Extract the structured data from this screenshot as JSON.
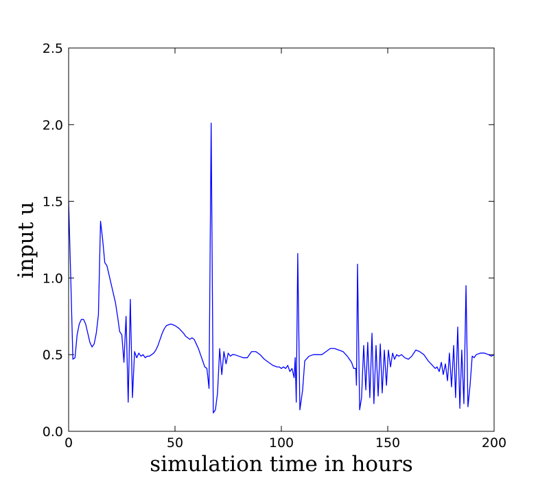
{
  "chart_data": {
    "type": "line",
    "x_label": "simulation time in hours",
    "y_label": "input u",
    "x": [
      0,
      1,
      2,
      3,
      4,
      5,
      6,
      7,
      8,
      9,
      10,
      11,
      12,
      13,
      14,
      15,
      16,
      17,
      18,
      19,
      20,
      21,
      22,
      23,
      24,
      25,
      26,
      27,
      28,
      29,
      30,
      31,
      32,
      33,
      34,
      35,
      36,
      37,
      38,
      39,
      40,
      41,
      42,
      43,
      44,
      45,
      46,
      48,
      50,
      52,
      54,
      55,
      56,
      57,
      58,
      59,
      60,
      61,
      62,
      63,
      64,
      65,
      66,
      67,
      68,
      69,
      70,
      71,
      72,
      73,
      74,
      75,
      76,
      77,
      78,
      80,
      82,
      84,
      86,
      88,
      90,
      92,
      94,
      96,
      98,
      99,
      100,
      101,
      102,
      103,
      104,
      105,
      106,
      106.5,
      107,
      107.7,
      108.7,
      110,
      111,
      113,
      115,
      117,
      119,
      121,
      123,
      125,
      127,
      129,
      131,
      133,
      134,
      135,
      135.3,
      135.8,
      136.8,
      137.7,
      138.7,
      139.7,
      140.6,
      141.6,
      142.6,
      143.5,
      144.5,
      145.5,
      146.5,
      147.4,
      148.4,
      149.4,
      150.3,
      151.3,
      152.3,
      153.2,
      154.2,
      155.2,
      156.5,
      158,
      159.7,
      161.3,
      163.2,
      165,
      167,
      169,
      171,
      172.3,
      173.2,
      174.2,
      175.2,
      176.1,
      177.1,
      178.1,
      179,
      180,
      181,
      181.9,
      182.9,
      183.9,
      184.8,
      185.8,
      186.8,
      187.7,
      188.7,
      189.7,
      190.6,
      191.6,
      193.5,
      195.5,
      197.4,
      198.7,
      200
    ],
    "values": [
      1.5,
      1.0,
      0.47,
      0.48,
      0.63,
      0.7,
      0.73,
      0.73,
      0.7,
      0.64,
      0.58,
      0.55,
      0.57,
      0.64,
      0.76,
      1.37,
      1.25,
      1.1,
      1.08,
      1.02,
      0.96,
      0.9,
      0.84,
      0.75,
      0.65,
      0.63,
      0.45,
      0.75,
      0.19,
      0.86,
      0.22,
      0.52,
      0.48,
      0.51,
      0.49,
      0.5,
      0.48,
      0.49,
      0.49,
      0.5,
      0.51,
      0.53,
      0.56,
      0.6,
      0.64,
      0.67,
      0.69,
      0.7,
      0.69,
      0.67,
      0.64,
      0.62,
      0.61,
      0.6,
      0.61,
      0.6,
      0.57,
      0.54,
      0.5,
      0.46,
      0.42,
      0.41,
      0.28,
      2.01,
      0.12,
      0.14,
      0.25,
      0.54,
      0.37,
      0.52,
      0.44,
      0.51,
      0.49,
      0.5,
      0.5,
      0.49,
      0.48,
      0.48,
      0.52,
      0.52,
      0.5,
      0.47,
      0.45,
      0.43,
      0.42,
      0.42,
      0.41,
      0.42,
      0.41,
      0.43,
      0.39,
      0.41,
      0.35,
      0.48,
      0.19,
      1.16,
      0.14,
      0.27,
      0.46,
      0.49,
      0.5,
      0.5,
      0.5,
      0.52,
      0.54,
      0.54,
      0.53,
      0.52,
      0.49,
      0.45,
      0.41,
      0.41,
      0.3,
      1.09,
      0.14,
      0.22,
      0.56,
      0.27,
      0.58,
      0.22,
      0.64,
      0.18,
      0.56,
      0.23,
      0.57,
      0.25,
      0.53,
      0.3,
      0.53,
      0.42,
      0.51,
      0.47,
      0.5,
      0.49,
      0.5,
      0.48,
      0.47,
      0.49,
      0.53,
      0.52,
      0.5,
      0.46,
      0.43,
      0.41,
      0.42,
      0.39,
      0.45,
      0.37,
      0.44,
      0.33,
      0.51,
      0.29,
      0.56,
      0.22,
      0.68,
      0.15,
      0.53,
      0.18,
      0.95,
      0.16,
      0.3,
      0.49,
      0.48,
      0.5,
      0.51,
      0.51,
      0.5,
      0.49,
      0.5
    ],
    "color": "#0000ff",
    "xlim": [
      0,
      200
    ],
    "xticks": [
      0,
      50,
      100,
      150,
      200
    ],
    "ylim": [
      0,
      2.5
    ],
    "yticks": [
      {
        "value": 0,
        "label": "0.0"
      },
      {
        "value": 0.5,
        "label": "0.5"
      },
      {
        "value": 1,
        "label": "1.0"
      },
      {
        "value": 1.5,
        "label": "1.5"
      },
      {
        "value": 2,
        "label": "2.0"
      },
      {
        "value": 2.5,
        "label": "2.5"
      }
    ]
  }
}
